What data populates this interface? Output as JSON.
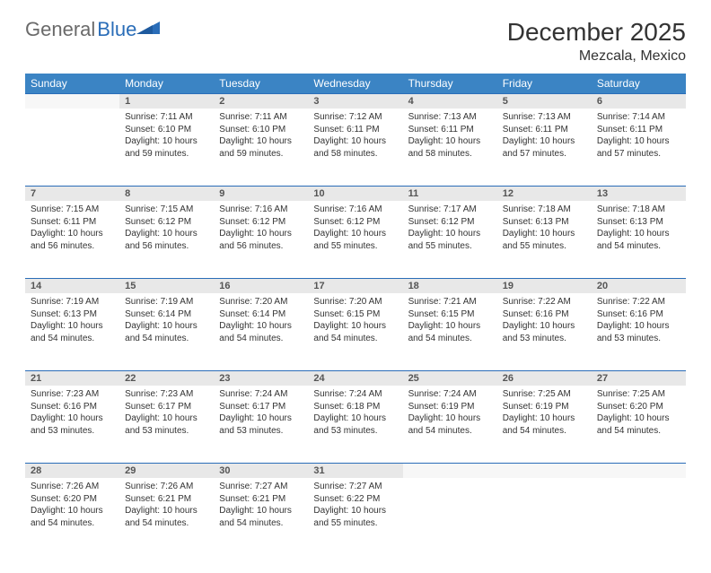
{
  "logo": {
    "text1": "General",
    "text2": "Blue"
  },
  "title": "December 2025",
  "location": "Mezcala, Mexico",
  "colors": {
    "header_bg": "#3b84c4",
    "border": "#2a6db8",
    "daynum_bg": "#e8e8e8"
  },
  "weekdays": [
    "Sunday",
    "Monday",
    "Tuesday",
    "Wednesday",
    "Thursday",
    "Friday",
    "Saturday"
  ],
  "weeks": [
    [
      null,
      {
        "n": "1",
        "sr": "Sunrise: 7:11 AM",
        "ss": "Sunset: 6:10 PM",
        "d1": "Daylight: 10 hours",
        "d2": "and 59 minutes."
      },
      {
        "n": "2",
        "sr": "Sunrise: 7:11 AM",
        "ss": "Sunset: 6:10 PM",
        "d1": "Daylight: 10 hours",
        "d2": "and 59 minutes."
      },
      {
        "n": "3",
        "sr": "Sunrise: 7:12 AM",
        "ss": "Sunset: 6:11 PM",
        "d1": "Daylight: 10 hours",
        "d2": "and 58 minutes."
      },
      {
        "n": "4",
        "sr": "Sunrise: 7:13 AM",
        "ss": "Sunset: 6:11 PM",
        "d1": "Daylight: 10 hours",
        "d2": "and 58 minutes."
      },
      {
        "n": "5",
        "sr": "Sunrise: 7:13 AM",
        "ss": "Sunset: 6:11 PM",
        "d1": "Daylight: 10 hours",
        "d2": "and 57 minutes."
      },
      {
        "n": "6",
        "sr": "Sunrise: 7:14 AM",
        "ss": "Sunset: 6:11 PM",
        "d1": "Daylight: 10 hours",
        "d2": "and 57 minutes."
      }
    ],
    [
      {
        "n": "7",
        "sr": "Sunrise: 7:15 AM",
        "ss": "Sunset: 6:11 PM",
        "d1": "Daylight: 10 hours",
        "d2": "and 56 minutes."
      },
      {
        "n": "8",
        "sr": "Sunrise: 7:15 AM",
        "ss": "Sunset: 6:12 PM",
        "d1": "Daylight: 10 hours",
        "d2": "and 56 minutes."
      },
      {
        "n": "9",
        "sr": "Sunrise: 7:16 AM",
        "ss": "Sunset: 6:12 PM",
        "d1": "Daylight: 10 hours",
        "d2": "and 56 minutes."
      },
      {
        "n": "10",
        "sr": "Sunrise: 7:16 AM",
        "ss": "Sunset: 6:12 PM",
        "d1": "Daylight: 10 hours",
        "d2": "and 55 minutes."
      },
      {
        "n": "11",
        "sr": "Sunrise: 7:17 AM",
        "ss": "Sunset: 6:12 PM",
        "d1": "Daylight: 10 hours",
        "d2": "and 55 minutes."
      },
      {
        "n": "12",
        "sr": "Sunrise: 7:18 AM",
        "ss": "Sunset: 6:13 PM",
        "d1": "Daylight: 10 hours",
        "d2": "and 55 minutes."
      },
      {
        "n": "13",
        "sr": "Sunrise: 7:18 AM",
        "ss": "Sunset: 6:13 PM",
        "d1": "Daylight: 10 hours",
        "d2": "and 54 minutes."
      }
    ],
    [
      {
        "n": "14",
        "sr": "Sunrise: 7:19 AM",
        "ss": "Sunset: 6:13 PM",
        "d1": "Daylight: 10 hours",
        "d2": "and 54 minutes."
      },
      {
        "n": "15",
        "sr": "Sunrise: 7:19 AM",
        "ss": "Sunset: 6:14 PM",
        "d1": "Daylight: 10 hours",
        "d2": "and 54 minutes."
      },
      {
        "n": "16",
        "sr": "Sunrise: 7:20 AM",
        "ss": "Sunset: 6:14 PM",
        "d1": "Daylight: 10 hours",
        "d2": "and 54 minutes."
      },
      {
        "n": "17",
        "sr": "Sunrise: 7:20 AM",
        "ss": "Sunset: 6:15 PM",
        "d1": "Daylight: 10 hours",
        "d2": "and 54 minutes."
      },
      {
        "n": "18",
        "sr": "Sunrise: 7:21 AM",
        "ss": "Sunset: 6:15 PM",
        "d1": "Daylight: 10 hours",
        "d2": "and 54 minutes."
      },
      {
        "n": "19",
        "sr": "Sunrise: 7:22 AM",
        "ss": "Sunset: 6:16 PM",
        "d1": "Daylight: 10 hours",
        "d2": "and 53 minutes."
      },
      {
        "n": "20",
        "sr": "Sunrise: 7:22 AM",
        "ss": "Sunset: 6:16 PM",
        "d1": "Daylight: 10 hours",
        "d2": "and 53 minutes."
      }
    ],
    [
      {
        "n": "21",
        "sr": "Sunrise: 7:23 AM",
        "ss": "Sunset: 6:16 PM",
        "d1": "Daylight: 10 hours",
        "d2": "and 53 minutes."
      },
      {
        "n": "22",
        "sr": "Sunrise: 7:23 AM",
        "ss": "Sunset: 6:17 PM",
        "d1": "Daylight: 10 hours",
        "d2": "and 53 minutes."
      },
      {
        "n": "23",
        "sr": "Sunrise: 7:24 AM",
        "ss": "Sunset: 6:17 PM",
        "d1": "Daylight: 10 hours",
        "d2": "and 53 minutes."
      },
      {
        "n": "24",
        "sr": "Sunrise: 7:24 AM",
        "ss": "Sunset: 6:18 PM",
        "d1": "Daylight: 10 hours",
        "d2": "and 53 minutes."
      },
      {
        "n": "25",
        "sr": "Sunrise: 7:24 AM",
        "ss": "Sunset: 6:19 PM",
        "d1": "Daylight: 10 hours",
        "d2": "and 54 minutes."
      },
      {
        "n": "26",
        "sr": "Sunrise: 7:25 AM",
        "ss": "Sunset: 6:19 PM",
        "d1": "Daylight: 10 hours",
        "d2": "and 54 minutes."
      },
      {
        "n": "27",
        "sr": "Sunrise: 7:25 AM",
        "ss": "Sunset: 6:20 PM",
        "d1": "Daylight: 10 hours",
        "d2": "and 54 minutes."
      }
    ],
    [
      {
        "n": "28",
        "sr": "Sunrise: 7:26 AM",
        "ss": "Sunset: 6:20 PM",
        "d1": "Daylight: 10 hours",
        "d2": "and 54 minutes."
      },
      {
        "n": "29",
        "sr": "Sunrise: 7:26 AM",
        "ss": "Sunset: 6:21 PM",
        "d1": "Daylight: 10 hours",
        "d2": "and 54 minutes."
      },
      {
        "n": "30",
        "sr": "Sunrise: 7:27 AM",
        "ss": "Sunset: 6:21 PM",
        "d1": "Daylight: 10 hours",
        "d2": "and 54 minutes."
      },
      {
        "n": "31",
        "sr": "Sunrise: 7:27 AM",
        "ss": "Sunset: 6:22 PM",
        "d1": "Daylight: 10 hours",
        "d2": "and 55 minutes."
      },
      null,
      null,
      null
    ]
  ]
}
